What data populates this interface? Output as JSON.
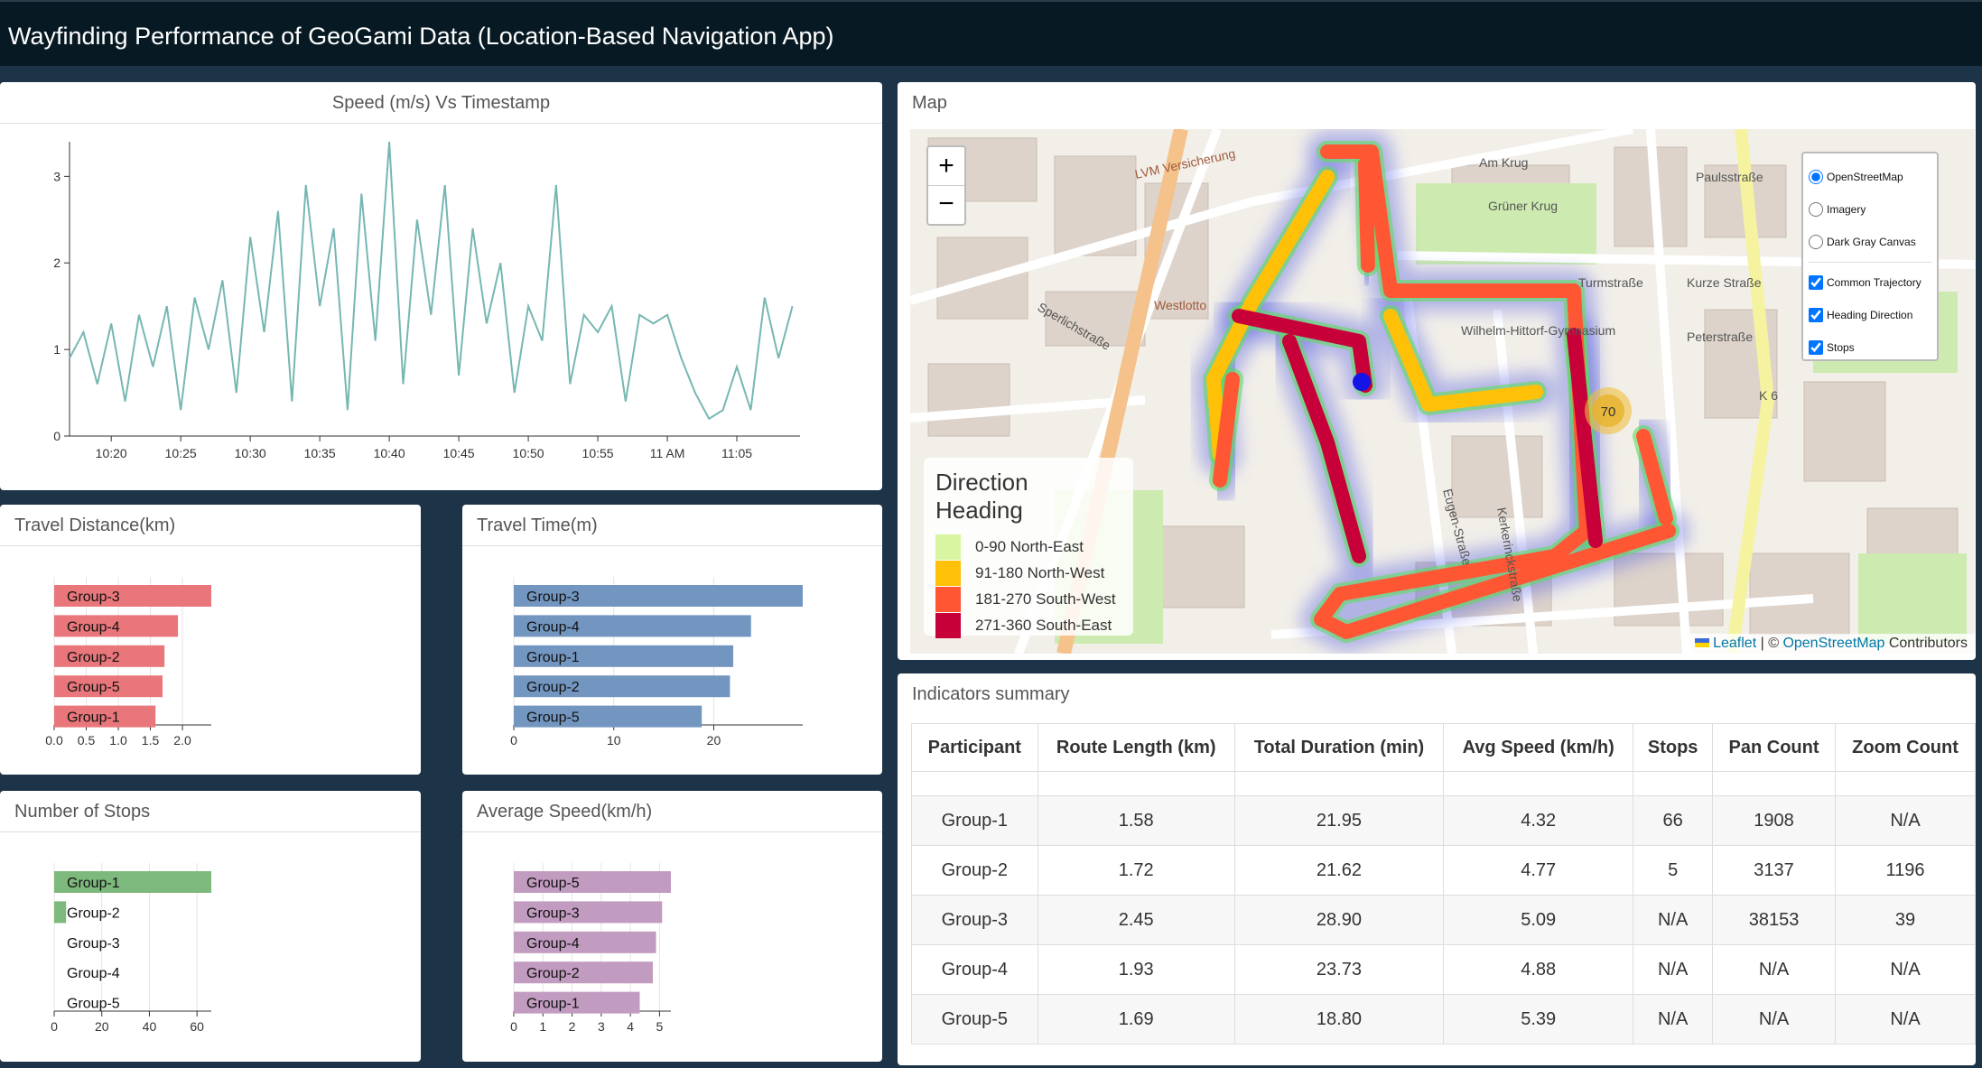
{
  "header": {
    "title": "Wayfinding Performance of GeoGami Data (Location-Based Navigation App)"
  },
  "chart_data": [
    {
      "type": "line",
      "title": "Speed (m/s) Vs Timestamp",
      "x": [
        "10:17",
        "10:18",
        "10:19",
        "10:20",
        "10:21",
        "10:22",
        "10:23",
        "10:24",
        "10:25",
        "10:26",
        "10:27",
        "10:28",
        "10:29",
        "10:30",
        "10:31",
        "10:32",
        "10:33",
        "10:34",
        "10:35",
        "10:36",
        "10:37",
        "10:38",
        "10:39",
        "10:40",
        "10:41",
        "10:42",
        "10:43",
        "10:44",
        "10:45",
        "10:46",
        "10:47",
        "10:48",
        "10:49",
        "10:50",
        "10:51",
        "10:52",
        "10:53",
        "10:54",
        "10:55",
        "10:56",
        "10:57",
        "10:58",
        "10:59",
        "11:00",
        "11:01",
        "11:02",
        "11:03",
        "11:04",
        "11:05",
        "11:06",
        "11:07",
        "11:08",
        "11:09"
      ],
      "series": [
        {
          "color": "#76b7b2",
          "values": [
            0.9,
            1.2,
            0.6,
            1.3,
            0.4,
            1.4,
            0.8,
            1.5,
            0.3,
            1.6,
            1.0,
            1.8,
            0.5,
            2.3,
            1.2,
            2.6,
            0.4,
            2.9,
            1.5,
            2.4,
            0.3,
            2.8,
            1.1,
            3.4,
            0.6,
            2.5,
            1.4,
            2.9,
            0.7,
            2.4,
            1.3,
            2.0,
            0.5,
            1.5,
            1.1,
            2.9,
            0.6,
            1.4,
            1.2,
            1.5,
            0.4,
            1.4,
            1.3,
            1.4,
            0.9,
            0.5,
            0.2,
            0.3,
            0.8,
            0.3,
            1.6,
            0.9,
            1.5
          ]
        }
      ],
      "xlim": [
        "10:17",
        "11:10"
      ],
      "xticks": [
        "10:20",
        "10:25",
        "10:30",
        "10:35",
        "10:40",
        "10:45",
        "10:50",
        "10:55",
        {
          "value": "11:00",
          "label": "11 AM"
        },
        "11:05"
      ],
      "ylim": [
        0,
        3.4
      ],
      "yticks": [
        0,
        1,
        2,
        3
      ]
    },
    {
      "type": "bar",
      "title": "Travel Distance(km)",
      "categories": [
        "Group-3",
        "Group-4",
        "Group-2",
        "Group-5",
        "Group-1"
      ],
      "values": [
        2.45,
        1.93,
        1.72,
        1.69,
        1.58
      ],
      "color": "#e8767a",
      "xlim": [
        0,
        2.45
      ],
      "xticks": [
        {
          "value": 0,
          "label": "0.0"
        },
        0.5,
        {
          "value": 1,
          "label": "1.0"
        },
        1.5,
        {
          "value": 2,
          "label": "2.0"
        }
      ],
      "grid": true
    },
    {
      "type": "bar",
      "title": "Travel Time(m)",
      "categories": [
        "Group-3",
        "Group-4",
        "Group-1",
        "Group-2",
        "Group-5"
      ],
      "values": [
        28.9,
        23.73,
        21.95,
        21.62,
        18.8
      ],
      "color": "#7396c0",
      "xlim": [
        0,
        28.9
      ],
      "xticks": [
        0,
        10,
        20
      ],
      "grid": true
    },
    {
      "type": "bar",
      "title": "Number of Stops",
      "categories": [
        "Group-1",
        "Group-2",
        "Group-3",
        "Group-4",
        "Group-5"
      ],
      "values": [
        66,
        5,
        null,
        null,
        null
      ],
      "color": "#7db87c",
      "xlim": [
        0,
        66
      ],
      "xticks": [
        0,
        20,
        40,
        60
      ],
      "grid": true
    },
    {
      "type": "bar",
      "title": "Average Speed(km/h)",
      "categories": [
        "Group-5",
        "Group-3",
        "Group-4",
        "Group-2",
        "Group-1"
      ],
      "values": [
        5.39,
        5.09,
        4.88,
        4.77,
        4.32
      ],
      "color": "#c29bc0",
      "xlim": [
        0,
        5.39
      ],
      "xticks": [
        0,
        1,
        2,
        3,
        4,
        5
      ],
      "grid": true
    }
  ],
  "map": {
    "title": "Map",
    "zoom_in": "+",
    "zoom_out": "−",
    "layers": [
      {
        "label": "OpenStreetMap",
        "kind": "radio",
        "checked": true
      },
      {
        "label": "Imagery",
        "kind": "radio",
        "checked": false
      },
      {
        "label": "Dark Gray Canvas",
        "kind": "radio",
        "checked": false
      },
      {
        "label": "Common Trajectory",
        "kind": "checkbox",
        "checked": true
      },
      {
        "label": "Heading Direction",
        "kind": "checkbox",
        "checked": true
      },
      {
        "label": "Stops",
        "kind": "checkbox",
        "checked": true
      }
    ],
    "legend": {
      "title": "Direction Heading",
      "items": [
        {
          "label": "0-90 North-East",
          "color": "#d8f5a2"
        },
        {
          "label": "91-180 North-West",
          "color": "#ffc107"
        },
        {
          "label": "181-270 South-West",
          "color": "#ff5733"
        },
        {
          "label": "271-360 South-East",
          "color": "#c70039"
        }
      ]
    },
    "cluster": "70",
    "attribution_leaflet": "Leaflet",
    "attribution_sep": "| ©",
    "attribution_osm": "OpenStreetMap",
    "attribution_tail": "Contributors",
    "labels": [
      "LVM Versicherung",
      "Am Krug",
      "Paulsstraße",
      "Turmstraße",
      "Kurze Straße",
      "Peterstraße",
      "K 6",
      "Westlotto",
      "Grüner Krug",
      "Wilhelm-Hittorf-Gymnasium",
      "Sperlichstraße",
      "Eugen-Straße",
      "Kerkerinckstraße"
    ]
  },
  "table": {
    "title": "Indicators summary",
    "columns": [
      "Participant",
      "Route Length (km)",
      "Total Duration (min)",
      "Avg Speed (km/h)",
      "Stops",
      "Pan Count",
      "Zoom Count"
    ],
    "rows": [
      [
        "Group-1",
        "1.58",
        "21.95",
        "4.32",
        "66",
        "1908",
        "N/A"
      ],
      [
        "Group-2",
        "1.72",
        "21.62",
        "4.77",
        "5",
        "3137",
        "1196"
      ],
      [
        "Group-3",
        "2.45",
        "28.90",
        "5.09",
        "N/A",
        "38153",
        "39"
      ],
      [
        "Group-4",
        "1.93",
        "23.73",
        "4.88",
        "N/A",
        "N/A",
        "N/A"
      ],
      [
        "Group-5",
        "1.69",
        "18.80",
        "5.39",
        "N/A",
        "N/A",
        "N/A"
      ]
    ]
  }
}
